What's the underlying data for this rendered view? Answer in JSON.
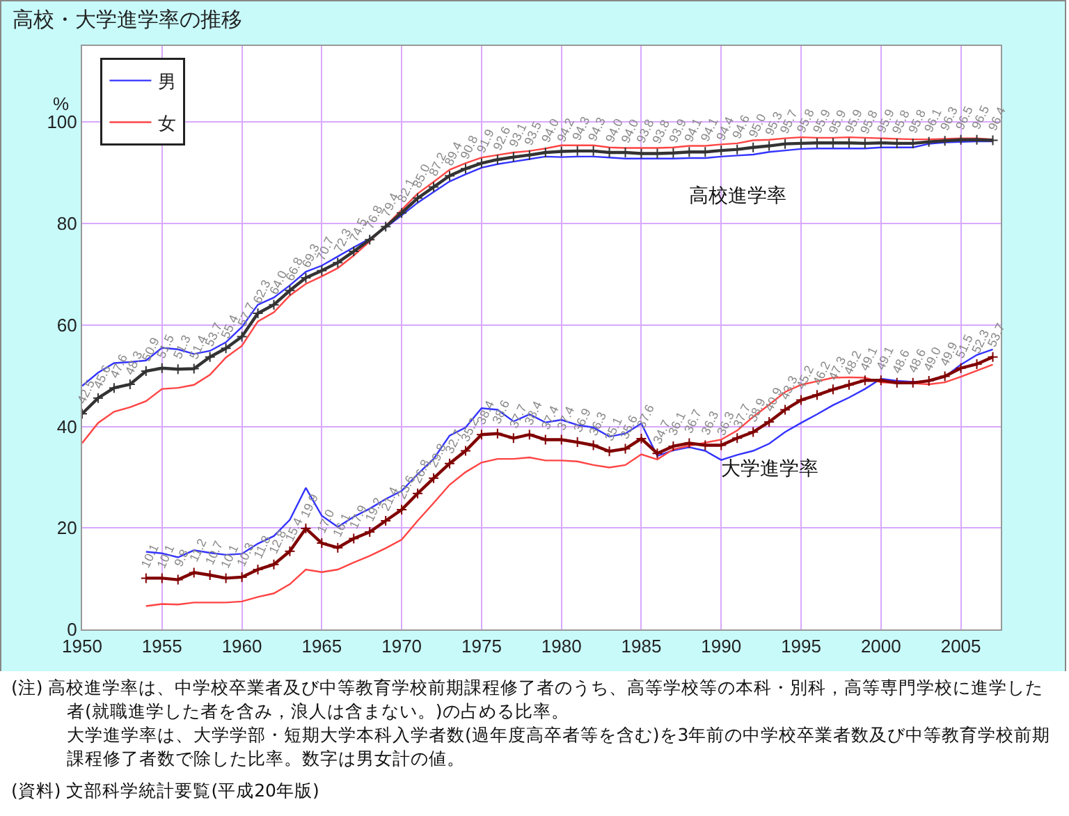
{
  "chart_data": {
    "type": "line",
    "title": "高校・大学進学率の推移",
    "ylabel": "%",
    "xlim": [
      1950,
      2007.5
    ],
    "xticks": [
      1950,
      1955,
      1960,
      1965,
      1970,
      1975,
      1980,
      1985,
      1990,
      1995,
      2000,
      2005
    ],
    "ylim": [
      0,
      115
    ],
    "yticks": [
      0,
      20,
      40,
      60,
      80,
      100
    ],
    "grid": true,
    "legend": "top left",
    "line_style": "solid",
    "series": [
      {
        "name": "男",
        "color": "#3333ff",
        "marker": "none",
        "x": [
          1950,
          1951,
          1952,
          1953,
          1954,
          1955,
          1956,
          1957,
          1958,
          1959,
          1960,
          1961,
          1962,
          1963,
          1964,
          1965,
          1966,
          1967,
          1968,
          1969,
          1970,
          1971,
          1972,
          1973,
          1974,
          1975,
          1976,
          1977,
          1978,
          1979,
          1980,
          1981,
          1982,
          1983,
          1984,
          1985,
          1986,
          1987,
          1988,
          1989,
          1990,
          1991,
          1992,
          1993,
          1994,
          1995,
          1996,
          1997,
          1998,
          1999,
          2000,
          2001,
          2002,
          2003,
          2004,
          2005,
          2006,
          2007
        ],
        "values": [
          48.0,
          50.6,
          52.5,
          52.7,
          53.0,
          55.5,
          55.2,
          54.3,
          54.9,
          56.6,
          59.6,
          64.0,
          65.4,
          67.8,
          70.5,
          71.7,
          73.5,
          75.3,
          77.0,
          79.2,
          81.6,
          84.1,
          86.2,
          88.3,
          89.7,
          91.0,
          91.7,
          92.2,
          92.7,
          93.2,
          93.1,
          93.2,
          93.2,
          93.0,
          92.8,
          92.8,
          92.8,
          92.8,
          92.9,
          92.9,
          93.2,
          93.4,
          93.6,
          94.1,
          94.4,
          94.7,
          94.8,
          94.8,
          94.8,
          94.8,
          95.0,
          95.0,
          95.0,
          95.7,
          96.0,
          96.1,
          96.2,
          96.2
        ]
      },
      {
        "name": "女",
        "color": "#ff4444",
        "marker": "none",
        "x": [
          1950,
          1951,
          1952,
          1953,
          1954,
          1955,
          1956,
          1957,
          1958,
          1959,
          1960,
          1961,
          1962,
          1963,
          1964,
          1965,
          1966,
          1967,
          1968,
          1969,
          1970,
          1971,
          1972,
          1973,
          1974,
          1975,
          1976,
          1977,
          1978,
          1979,
          1980,
          1981,
          1982,
          1983,
          1984,
          1985,
          1986,
          1987,
          1988,
          1989,
          1990,
          1991,
          1992,
          1993,
          1994,
          1995,
          1996,
          1997,
          1998,
          1999,
          2000,
          2001,
          2002,
          2003,
          2004,
          2005,
          2006,
          2007
        ],
        "values": [
          36.7,
          40.7,
          42.9,
          43.8,
          45.0,
          47.4,
          47.6,
          48.2,
          50.2,
          53.6,
          55.9,
          60.7,
          62.5,
          65.8,
          68.1,
          69.6,
          71.2,
          73.7,
          76.5,
          79.5,
          82.7,
          85.9,
          88.2,
          90.6,
          91.9,
          93.0,
          93.5,
          94.0,
          94.3,
          94.8,
          95.4,
          95.4,
          95.4,
          95.0,
          94.9,
          94.9,
          94.9,
          95.0,
          95.3,
          95.3,
          95.6,
          95.8,
          96.4,
          96.5,
          96.8,
          97.0,
          96.9,
          96.9,
          97.0,
          96.9,
          96.8,
          96.7,
          96.6,
          96.6,
          96.7,
          96.8,
          96.8,
          96.6
        ]
      },
      {
        "color": "#333333",
        "marker": "cross",
        "x": [
          1950,
          1951,
          1952,
          1953,
          1954,
          1955,
          1956,
          1957,
          1958,
          1959,
          1960,
          1961,
          1962,
          1963,
          1964,
          1965,
          1966,
          1967,
          1968,
          1969,
          1970,
          1971,
          1972,
          1973,
          1974,
          1975,
          1976,
          1977,
          1978,
          1979,
          1980,
          1981,
          1982,
          1983,
          1984,
          1985,
          1986,
          1987,
          1988,
          1989,
          1990,
          1991,
          1992,
          1993,
          1994,
          1995,
          1996,
          1997,
          1998,
          1999,
          2000,
          2001,
          2002,
          2003,
          2004,
          2005,
          2006,
          2007
        ],
        "values": [
          42.5,
          45.6,
          47.6,
          48.3,
          50.9,
          51.5,
          51.3,
          51.4,
          53.7,
          55.4,
          57.7,
          62.3,
          64.0,
          66.8,
          69.3,
          70.7,
          72.3,
          74.5,
          76.8,
          79.4,
          82.1,
          85.0,
          87.2,
          89.4,
          90.8,
          91.9,
          92.6,
          93.1,
          93.5,
          94.0,
          94.2,
          94.3,
          94.3,
          94.0,
          94.0,
          93.8,
          93.8,
          93.9,
          94.1,
          94.1,
          94.4,
          94.6,
          95.0,
          95.3,
          95.7,
          95.8,
          95.9,
          95.9,
          95.9,
          95.8,
          95.9,
          95.8,
          95.8,
          96.1,
          96.3,
          96.5,
          96.5,
          96.4
        ],
        "value_labels": [
          "42.5",
          "45.6",
          "47.6",
          "48.3",
          "50.9",
          "51.5",
          "51.3",
          "51.4",
          "53.7",
          "55.4",
          "57.7",
          "62.3",
          "64.0",
          "66.8",
          "69.3",
          "70.7",
          "72.3",
          "74.5",
          "76.8",
          "79.4",
          "82.1",
          "85.0",
          "87.2",
          "89.4",
          "90.8",
          "91.9",
          "92.6",
          "93.1",
          "93.5",
          "94.0",
          "94.2",
          "94.3",
          "94.3",
          "94.0",
          "94.0",
          "93.8",
          "93.8",
          "93.9",
          "94.1",
          "94.1",
          "94.4",
          "94.6",
          "95.0",
          "95.3",
          "95.7",
          "95.8",
          "95.9",
          "95.9",
          "95.9",
          "95.8",
          "95.9",
          "95.8",
          "95.8",
          "96.1",
          "96.3",
          "96.5",
          "96.5",
          "96.4"
        ]
      },
      {
        "color": "#3333ff",
        "marker": "none",
        "x": [
          1954,
          1955,
          1956,
          1957,
          1958,
          1959,
          1960,
          1961,
          1962,
          1963,
          1964,
          1965,
          1966,
          1967,
          1968,
          1969,
          1970,
          1971,
          1972,
          1973,
          1974,
          1975,
          1976,
          1977,
          1978,
          1979,
          1980,
          1981,
          1982,
          1983,
          1984,
          1985,
          1986,
          1987,
          1988,
          1989,
          1990,
          1991,
          1992,
          1993,
          1994,
          1995,
          1996,
          1997,
          1998,
          1999,
          2000,
          2001,
          2002,
          2003,
          2004,
          2005,
          2006,
          2007
        ],
        "values": [
          15.3,
          15.0,
          14.2,
          15.6,
          15.1,
          14.7,
          14.9,
          16.9,
          18.4,
          21.6,
          27.9,
          22.4,
          20.2,
          22.2,
          23.8,
          25.7,
          27.3,
          30.6,
          33.6,
          38.2,
          39.8,
          43.6,
          43.3,
          41.0,
          42.4,
          40.8,
          41.3,
          40.3,
          39.8,
          38.0,
          38.6,
          40.6,
          34.2,
          35.3,
          35.9,
          35.2,
          33.4,
          34.4,
          35.2,
          36.6,
          38.9,
          40.7,
          42.4,
          44.2,
          45.7,
          47.4,
          49.4,
          49.0,
          48.8,
          48.9,
          49.8,
          52.2,
          54.1,
          55.2
        ]
      },
      {
        "color": "#ff4444",
        "marker": "none",
        "x": [
          1954,
          1955,
          1956,
          1957,
          1958,
          1959,
          1960,
          1961,
          1962,
          1963,
          1964,
          1965,
          1966,
          1967,
          1968,
          1969,
          1970,
          1971,
          1972,
          1973,
          1974,
          1975,
          1976,
          1977,
          1978,
          1979,
          1980,
          1981,
          1982,
          1983,
          1984,
          1985,
          1986,
          1987,
          1988,
          1989,
          1990,
          1991,
          1992,
          1993,
          1994,
          1995,
          1996,
          1997,
          1998,
          1999,
          2000,
          2001,
          2002,
          2003,
          2004,
          2005,
          2006,
          2007
        ],
        "values": [
          4.6,
          5.0,
          4.9,
          5.3,
          5.3,
          5.3,
          5.5,
          6.4,
          7.1,
          8.9,
          11.8,
          11.3,
          11.8,
          13.2,
          14.5,
          16.0,
          17.7,
          21.4,
          24.9,
          28.5,
          31.0,
          32.9,
          33.6,
          33.6,
          33.9,
          33.3,
          33.3,
          33.1,
          32.4,
          31.9,
          32.4,
          34.5,
          33.5,
          35.5,
          36.2,
          36.8,
          37.4,
          39.2,
          41.9,
          44.3,
          46.8,
          48.2,
          48.9,
          49.6,
          49.7,
          49.6,
          48.7,
          48.5,
          48.5,
          48.3,
          48.7,
          49.8,
          51.0,
          52.2
        ]
      },
      {
        "color": "#800000",
        "marker": "cross",
        "x": [
          1954,
          1955,
          1956,
          1957,
          1958,
          1959,
          1960,
          1961,
          1962,
          1963,
          1964,
          1965,
          1966,
          1967,
          1968,
          1969,
          1970,
          1971,
          1972,
          1973,
          1974,
          1975,
          1976,
          1977,
          1978,
          1979,
          1980,
          1981,
          1982,
          1983,
          1984,
          1985,
          1986,
          1987,
          1988,
          1989,
          1990,
          1991,
          1992,
          1993,
          1994,
          1995,
          1996,
          1997,
          1998,
          1999,
          2000,
          2001,
          2002,
          2003,
          2004,
          2005,
          2006,
          2007
        ],
        "values": [
          10.1,
          10.1,
          9.8,
          11.2,
          10.7,
          10.1,
          10.3,
          11.8,
          12.8,
          15.4,
          19.9,
          17.0,
          16.1,
          17.9,
          19.2,
          21.4,
          23.6,
          26.8,
          29.8,
          32.7,
          35.2,
          38.4,
          38.6,
          37.7,
          38.4,
          37.4,
          37.4,
          36.9,
          36.3,
          35.1,
          35.6,
          37.6,
          34.7,
          36.1,
          36.7,
          36.3,
          36.3,
          37.7,
          38.9,
          40.9,
          43.3,
          45.2,
          46.2,
          47.3,
          48.2,
          49.1,
          49.1,
          48.6,
          48.6,
          49.0,
          49.9,
          51.5,
          52.3,
          53.7
        ],
        "value_labels": [
          "10.1",
          "10.1",
          "9.8",
          "11.2",
          "10.7",
          "10.1",
          "10.3",
          "11.8",
          "12.8",
          "15.4",
          "19.9",
          "17.0",
          "16.1",
          "17.9",
          "19.2",
          "21.4",
          "23.6",
          "26.8",
          "29.8",
          "32.7",
          "35.2",
          "38.4",
          "38.6",
          "37.7",
          "38.4",
          "37.4",
          "37.4",
          "36.9",
          "36.3",
          "35.1",
          "35.6",
          "37.6",
          "34.7",
          "36.1",
          "36.7",
          "36.3",
          "36.3",
          "37.7",
          "38.9",
          "40.9",
          "43.3",
          "45.2",
          "46.2",
          "47.3",
          "48.2",
          "49.1",
          "49.1",
          "48.6",
          "48.6",
          "49.0",
          "49.9",
          "51.5",
          "52.3",
          "53.7"
        ]
      }
    ],
    "annotations": [
      {
        "text": "高校進学率",
        "x": 1991,
        "y": 94.6
      },
      {
        "text": "大学進学率",
        "x": 1993,
        "y": 40.9
      },
      "(注) 高校進学率は、中学校卒業者及び中等教育学校前期課程修了者のうち、高等学校等の本科・別科，高等専門学校に進学した者(就職進学した者を含み，浪人は含まない。)の占める比率。",
      "大学進学率は、大学学部・短期大学本科入学者数(過年度高卒者等を含む)を3年前の中学校卒業者数及び中等教育学校前期課程修了者数で除した比率。数字は男女計の値。",
      "(資料) 文部科学統計要覧(平成20年版)"
    ]
  }
}
